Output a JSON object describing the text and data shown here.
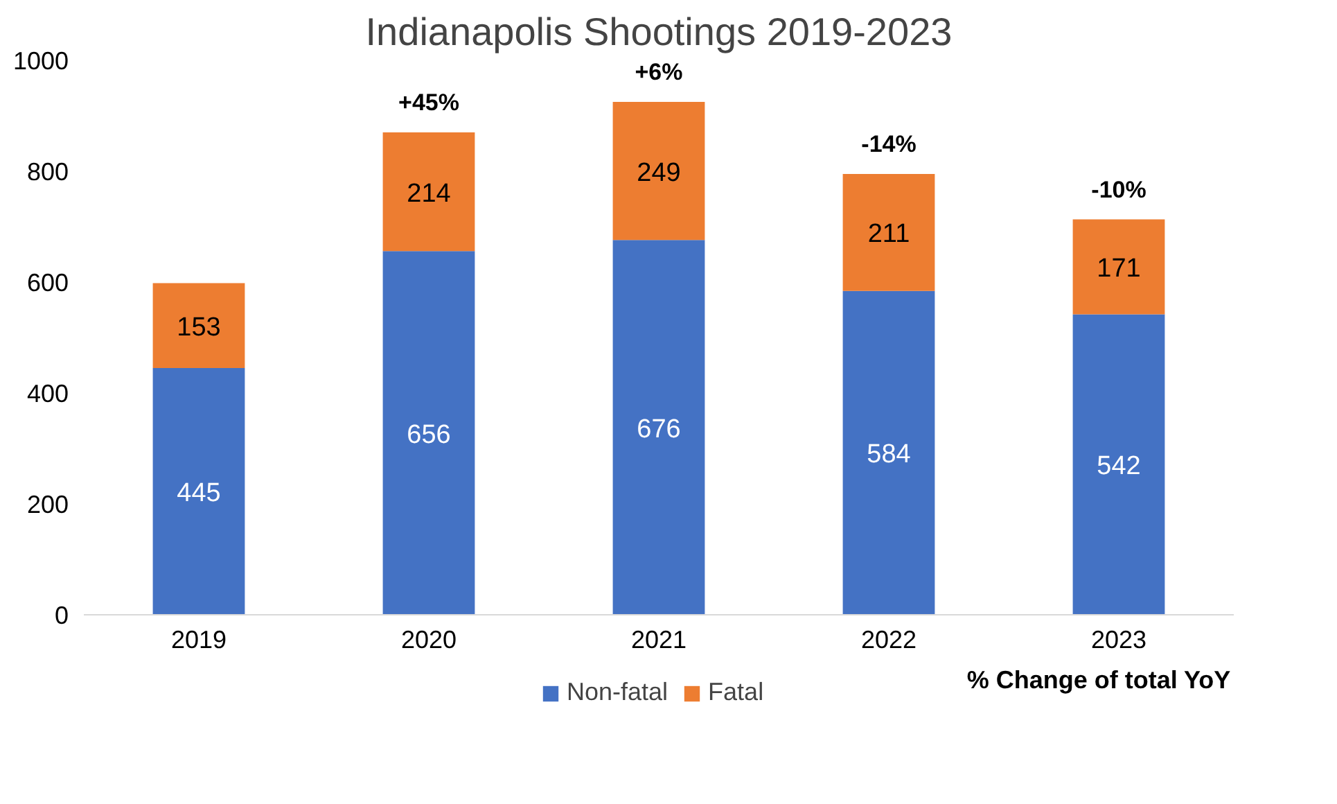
{
  "chart_data": {
    "type": "bar",
    "title": "Indianapolis Shootings 2019-2023",
    "categories": [
      "2019",
      "2020",
      "2021",
      "2022",
      "2023"
    ],
    "series": [
      {
        "name": "Non-fatal",
        "color": "#4472c4",
        "values": [
          445,
          656,
          676,
          584,
          542
        ]
      },
      {
        "name": "Fatal",
        "color": "#ed7d31",
        "values": [
          153,
          214,
          249,
          211,
          171
        ]
      }
    ],
    "stacked": true,
    "data_labels": true,
    "annotations": [
      "% Change of total YoY",
      {
        "text": "+45%",
        "x": "2020",
        "y": 870
      },
      {
        "text": "+6%",
        "x": "2021",
        "y": 925
      },
      {
        "text": "-14%",
        "x": "2022",
        "y": 795
      },
      {
        "text": "-10%",
        "x": "2023",
        "y": 713
      }
    ],
    "ylim": [
      0,
      1000
    ],
    "yticks": [
      0,
      200,
      400,
      600,
      800,
      1000
    ],
    "grid": false,
    "legend": "bottom"
  }
}
